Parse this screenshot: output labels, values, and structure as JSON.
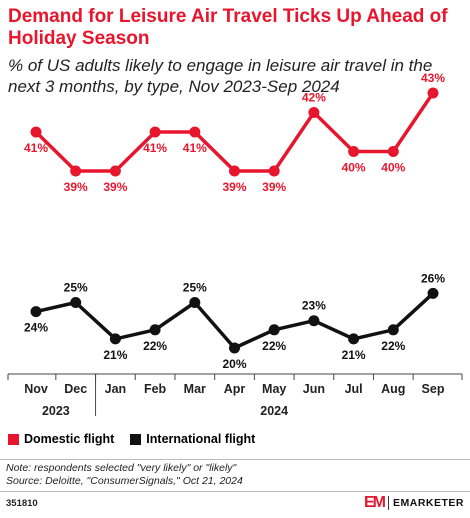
{
  "title": "Demand for Leisure Air Travel Ticks Up Ahead of Holiday Season",
  "subtitle": "% of US adults likely to engage in leisure air travel in the next 3 months, by type, Nov 2023-Sep 2024",
  "colors": {
    "domestic": "#e8162d",
    "international": "#111111",
    "title": "#e8162d"
  },
  "chart_data": {
    "type": "line",
    "categories": [
      "Nov",
      "Dec",
      "Jan",
      "Feb",
      "Mar",
      "Apr",
      "May",
      "Jun",
      "Jul",
      "Aug",
      "Sep"
    ],
    "year_labels": [
      {
        "label": "2023",
        "from": 0,
        "to": 1
      },
      {
        "label": "2024",
        "from": 2,
        "to": 10
      }
    ],
    "series": [
      {
        "name": "Domestic flight",
        "values": [
          41,
          39,
          39,
          41,
          41,
          39,
          39,
          42,
          40,
          40,
          43
        ],
        "labels": [
          "41%",
          "39%",
          "39%",
          "41%",
          "41%",
          "39%",
          "39%",
          "42%",
          "40%",
          "40%",
          "43%"
        ]
      },
      {
        "name": "International flight",
        "values": [
          24,
          25,
          21,
          22,
          25,
          20,
          22,
          23,
          21,
          22,
          26
        ],
        "labels": [
          "24%",
          "25%",
          "21%",
          "22%",
          "25%",
          "20%",
          "22%",
          "23%",
          "21%",
          "22%",
          "26%"
        ]
      }
    ],
    "grid": false,
    "legend_position": "bottom-left"
  },
  "legend": {
    "domestic_label": "Domestic flight",
    "international_label": "International flight"
  },
  "notes": {
    "note": "Note: respondents selected \"very likely\" or \"likely\"",
    "source": "Source: Deloitte, \"ConsumerSignals,\" Oct 21, 2024"
  },
  "footer": {
    "id": "351810",
    "brand_logo": "EM",
    "brand_name": "EMARKETER"
  }
}
